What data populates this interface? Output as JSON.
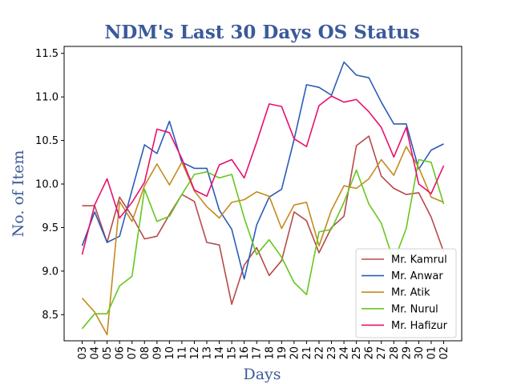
{
  "chart_data": {
    "type": "line",
    "title": "NDM's Last 30 Days OS Status",
    "xlabel": "Days",
    "ylabel": "No. of Item",
    "categories": [
      "03",
      "04",
      "05",
      "06",
      "07",
      "08",
      "09",
      "10",
      "11",
      "12",
      "13",
      "14",
      "15",
      "16",
      "17",
      "18",
      "19",
      "20",
      "21",
      "22",
      "23",
      "24",
      "25",
      "26",
      "27",
      "28",
      "29",
      "30",
      "01",
      "02"
    ],
    "ylim": [
      8.2,
      11.58
    ],
    "yticks": [
      "8.5",
      "9.0",
      "9.5",
      "10.0",
      "10.5",
      "11.0",
      "11.5"
    ],
    "grid": false,
    "legend_position": "lower-right",
    "series": [
      {
        "name": "Mr. Kamrul",
        "color": "#b84a4a",
        "values": [
          9.75,
          9.75,
          9.33,
          9.85,
          9.63,
          9.37,
          9.4,
          9.65,
          9.88,
          9.8,
          9.33,
          9.3,
          8.62,
          9.07,
          9.27,
          8.95,
          9.12,
          9.68,
          9.58,
          9.21,
          9.5,
          9.63,
          10.44,
          10.55,
          10.09,
          9.95,
          9.88,
          9.9,
          9.62,
          9.22
        ]
      },
      {
        "name": "Mr. Anwar",
        "color": "#2b5cb8",
        "values": [
          9.29,
          9.68,
          9.33,
          9.4,
          9.93,
          10.45,
          10.35,
          10.72,
          10.25,
          10.18,
          10.18,
          9.7,
          9.48,
          8.91,
          9.53,
          9.85,
          9.94,
          10.51,
          11.14,
          11.11,
          11.02,
          11.4,
          11.25,
          11.22,
          10.94,
          10.69,
          10.69,
          10.17,
          10.39,
          10.46
        ]
      },
      {
        "name": "Mr. Atik",
        "color": "#c48a1f",
        "values": [
          8.69,
          8.53,
          8.27,
          9.8,
          9.57,
          9.98,
          10.23,
          9.99,
          10.25,
          9.92,
          9.74,
          9.61,
          9.79,
          9.82,
          9.91,
          9.86,
          9.49,
          9.76,
          9.79,
          9.29,
          9.7,
          9.98,
          9.95,
          10.06,
          10.28,
          10.1,
          10.43,
          10.19,
          9.85,
          9.79
        ]
      },
      {
        "name": "Mr. Nurul",
        "color": "#66c71f",
        "values": [
          8.34,
          8.51,
          8.51,
          8.83,
          8.94,
          9.94,
          9.57,
          9.63,
          9.88,
          10.11,
          10.14,
          10.07,
          10.11,
          9.61,
          9.19,
          9.36,
          9.16,
          8.87,
          8.73,
          9.45,
          9.48,
          9.79,
          10.16,
          9.77,
          9.55,
          9.11,
          9.49,
          10.28,
          10.25,
          9.77
        ]
      },
      {
        "name": "Mr. Hafizur",
        "color": "#e8106e",
        "values": [
          9.19,
          9.76,
          10.06,
          9.61,
          9.79,
          10.02,
          10.63,
          10.59,
          10.29,
          9.93,
          9.86,
          10.22,
          10.28,
          10.07,
          10.48,
          10.92,
          10.89,
          10.52,
          10.43,
          10.9,
          11.01,
          10.94,
          10.97,
          10.83,
          10.65,
          10.31,
          10.65,
          10.0,
          9.89,
          10.21
        ]
      }
    ]
  }
}
